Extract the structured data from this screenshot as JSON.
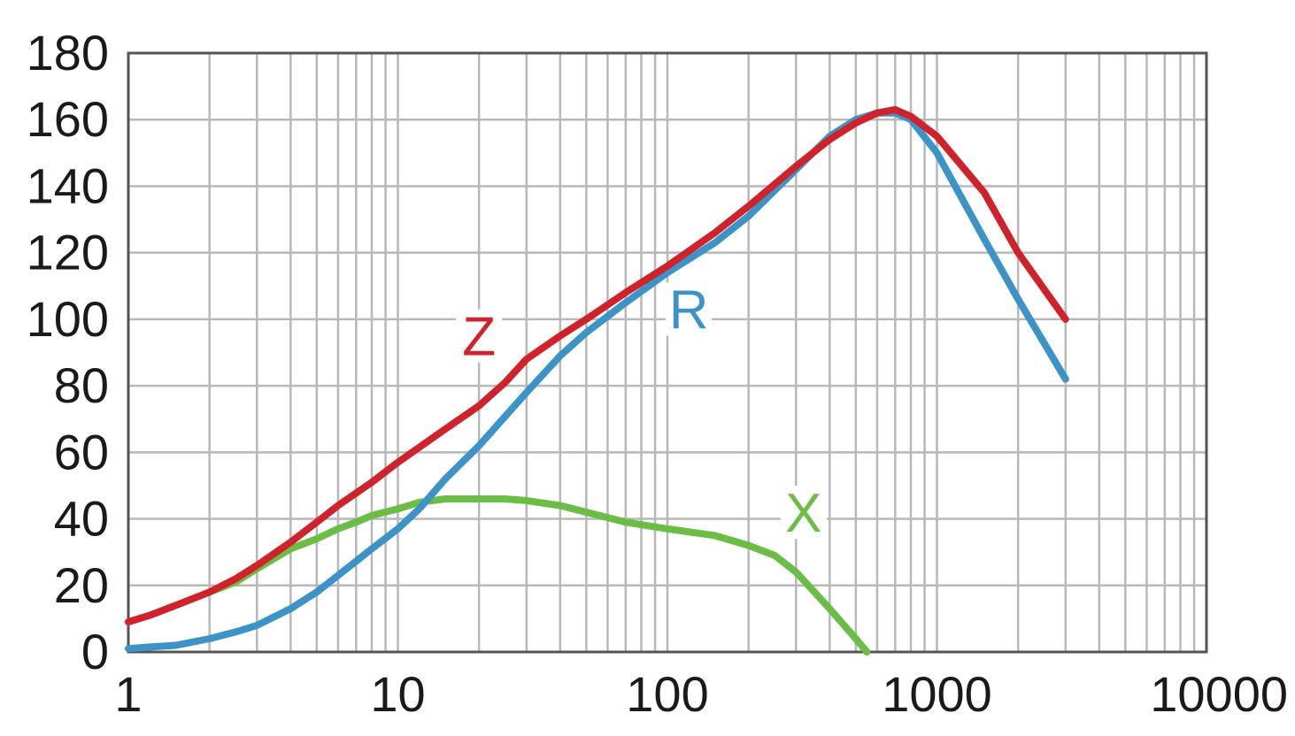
{
  "chart_data": {
    "type": "line",
    "xscale": "log",
    "xlim": [
      1,
      10000
    ],
    "ylim": [
      0,
      180
    ],
    "grid": true,
    "xticks": [
      1,
      10,
      100,
      1000,
      10000
    ],
    "xtick_labels": [
      "1",
      "10",
      "100",
      "1000",
      "10000"
    ],
    "yticks": [
      0,
      20,
      40,
      60,
      80,
      100,
      120,
      140,
      160,
      180
    ],
    "ytick_labels": [
      "0",
      "20",
      "40",
      "60",
      "80",
      "100",
      "120",
      "140",
      "160",
      "180"
    ],
    "series": [
      {
        "name": "Z",
        "color": "#d0222a",
        "label_at": [
          20,
          95
        ],
        "x": [
          1,
          1.2,
          1.5,
          2,
          2.5,
          3,
          4,
          5,
          6,
          8,
          10,
          15,
          20,
          25,
          30,
          40,
          50,
          70,
          100,
          150,
          200,
          300,
          400,
          500,
          600,
          700,
          800,
          1000,
          1500,
          2000,
          3000
        ],
        "y": [
          9,
          11,
          14,
          18,
          22,
          26,
          33,
          39,
          44,
          51,
          57,
          67,
          74,
          81,
          88,
          95,
          100,
          108,
          116,
          126,
          134,
          146,
          154,
          159,
          162,
          163,
          161,
          155,
          138,
          120,
          100
        ]
      },
      {
        "name": "R",
        "color": "#3b93c8",
        "label_at": [
          120,
          103
        ],
        "x": [
          1,
          1.2,
          1.5,
          2,
          2.5,
          3,
          4,
          5,
          6,
          8,
          10,
          12,
          15,
          20,
          30,
          40,
          50,
          70,
          100,
          150,
          200,
          300,
          400,
          500,
          600,
          700,
          800,
          1000,
          1500,
          2000,
          3000
        ],
        "y": [
          1,
          1.5,
          2,
          4,
          6,
          8,
          13,
          18,
          23,
          31,
          37,
          43,
          52,
          62,
          78,
          89,
          96,
          105,
          114,
          123,
          131,
          145,
          155,
          160,
          162,
          162,
          160,
          150,
          124,
          106,
          82
        ]
      },
      {
        "name": "X",
        "color": "#6cbd45",
        "label_at": [
          320,
          42
        ],
        "x": [
          1,
          1.2,
          1.5,
          2,
          2.5,
          3,
          4,
          5,
          6,
          7,
          8,
          10,
          12,
          15,
          20,
          25,
          30,
          40,
          50,
          70,
          100,
          150,
          200,
          250,
          300,
          400,
          500,
          550
        ],
        "y": [
          9,
          11,
          14,
          18,
          21,
          25,
          31,
          34,
          37,
          39,
          41,
          43,
          45,
          46,
          46,
          46,
          45.5,
          44,
          42,
          39,
          37,
          35,
          32,
          29,
          24,
          13,
          4,
          0
        ]
      }
    ]
  }
}
